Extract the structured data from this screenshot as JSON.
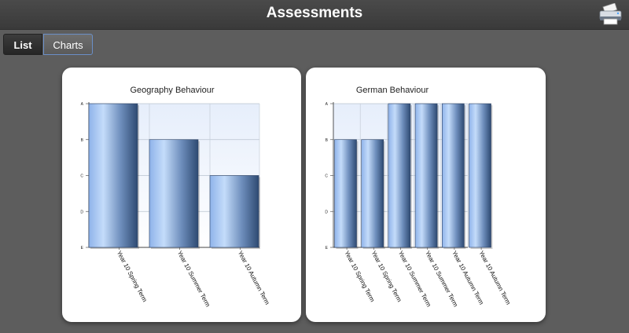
{
  "header": {
    "title": "Assessments",
    "print_icon": "printer-icon"
  },
  "tabs": [
    {
      "label": "List",
      "active": false
    },
    {
      "label": "Charts",
      "active": true
    }
  ],
  "colors": {
    "bar_dark": "#2e4a72",
    "bar_mid": "#8fb3ea",
    "bar_light": "#c4dcfa",
    "plot_bg_top": "#e6eefb"
  },
  "chart_data": [
    {
      "type": "bar",
      "title": "Geography  Behaviour",
      "y_grades": [
        "A",
        "B",
        "C",
        "D",
        "E"
      ],
      "categories": [
        "Year 10 Spring Term",
        "Year 10 Summer Term",
        "Year 10 Autumn Term"
      ],
      "values": [
        "A",
        "B",
        "C"
      ],
      "grid": true
    },
    {
      "type": "bar",
      "title": "German Behaviour",
      "y_grades": [
        "A",
        "B",
        "C",
        "D",
        "E"
      ],
      "categories": [
        "Year 10 Spring Term",
        "Year 10 Spring Term",
        "Year 10 Summer Term",
        "Year 10 Summer Term",
        "Year 10 Autumn Term",
        "Year 10 Autumn Term"
      ],
      "values": [
        "B",
        "B",
        "A",
        "A",
        "A",
        "A"
      ],
      "grid": true
    }
  ]
}
